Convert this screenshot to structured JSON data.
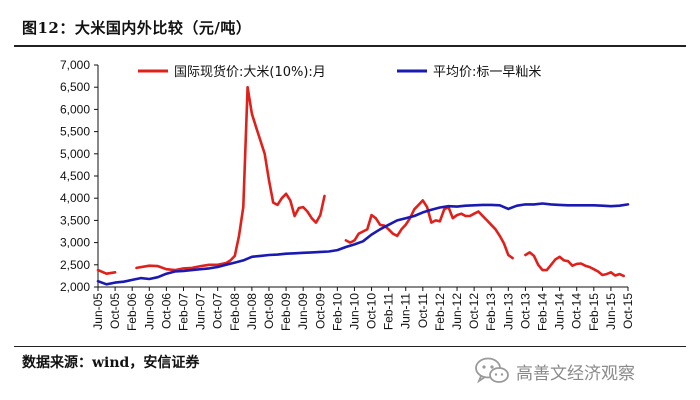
{
  "title": "图12：大米国内外比较（元/吨）",
  "source": "数据来源：wind，安信证券",
  "watermark": {
    "icon": "wechat-icon",
    "text": "高善文经济观察"
  },
  "chart_data": {
    "type": "line",
    "title": "图12：大米国内外比较（元/吨）",
    "xlabel": "",
    "ylabel": "",
    "ylim": [
      2000,
      7000
    ],
    "yticks": [
      2000,
      2500,
      3000,
      3500,
      4000,
      4500,
      5000,
      5500,
      6000,
      6500,
      7000
    ],
    "ytick_labels": [
      "2,000",
      "2,500",
      "3,000",
      "3,500",
      "4,000",
      "4,500",
      "5,000",
      "5,500",
      "6,000",
      "6,500",
      "7,000"
    ],
    "xlim": [
      "2005-06",
      "2015-10"
    ],
    "xtick_labels": [
      "Jun-05",
      "Oct-05",
      "Feb-06",
      "Jun-06",
      "Oct-06",
      "Feb-07",
      "Jun-07",
      "Oct-07",
      "Feb-08",
      "Jun-08",
      "Oct-08",
      "Feb-09",
      "Jun-09",
      "Oct-09",
      "Feb-10",
      "Jun-10",
      "Oct-10",
      "Feb-11",
      "Jun-11",
      "Oct-11",
      "Feb-12",
      "Jun-12",
      "Oct-12",
      "Feb-13",
      "Jun-13",
      "Oct-13",
      "Feb-14",
      "Jun-14",
      "Oct-14",
      "Feb-15",
      "Jun-15",
      "Oct-15"
    ],
    "grid": false,
    "legend_placement": "top",
    "series": [
      {
        "name": "国际现货价:大米(10%):月",
        "color": "#e0201b",
        "segments": [
          [
            [
              "2005-06",
              2380
            ],
            [
              "2005-08",
              2300
            ],
            [
              "2005-10",
              2330
            ]
          ],
          [
            [
              "2006-03",
              2430
            ],
            [
              "2006-06",
              2480
            ],
            [
              "2006-08",
              2470
            ],
            [
              "2006-10",
              2400
            ],
            [
              "2006-12",
              2380
            ],
            [
              "2007-02",
              2420
            ],
            [
              "2007-04",
              2430
            ],
            [
              "2007-06",
              2470
            ],
            [
              "2007-08",
              2500
            ],
            [
              "2007-10",
              2500
            ],
            [
              "2007-12",
              2540
            ],
            [
              "2008-01",
              2600
            ],
            [
              "2008-02",
              2700
            ],
            [
              "2008-03",
              3150
            ],
            [
              "2008-04",
              3800
            ],
            [
              "2008-05",
              6500
            ],
            [
              "2008-06",
              5900
            ],
            [
              "2008-07",
              5600
            ],
            [
              "2008-08",
              5300
            ],
            [
              "2008-09",
              5000
            ],
            [
              "2008-10",
              4400
            ],
            [
              "2008-11",
              3900
            ],
            [
              "2008-12",
              3850
            ],
            [
              "2009-01",
              4000
            ],
            [
              "2009-02",
              4100
            ],
            [
              "2009-03",
              3950
            ],
            [
              "2009-04",
              3600
            ],
            [
              "2009-05",
              3780
            ],
            [
              "2009-06",
              3800
            ],
            [
              "2009-07",
              3700
            ],
            [
              "2009-08",
              3550
            ],
            [
              "2009-09",
              3450
            ],
            [
              "2009-10",
              3620
            ],
            [
              "2009-11",
              4050
            ]
          ],
          [
            [
              "2010-04",
              3050
            ],
            [
              "2010-05",
              3000
            ],
            [
              "2010-06",
              3050
            ],
            [
              "2010-07",
              3200
            ],
            [
              "2010-08",
              3250
            ],
            [
              "2010-09",
              3300
            ],
            [
              "2010-10",
              3620
            ],
            [
              "2010-11",
              3550
            ],
            [
              "2010-12",
              3400
            ],
            [
              "2011-01",
              3380
            ],
            [
              "2011-02",
              3300
            ],
            [
              "2011-03",
              3200
            ],
            [
              "2011-04",
              3150
            ],
            [
              "2011-05",
              3300
            ],
            [
              "2011-06",
              3400
            ],
            [
              "2011-07",
              3550
            ],
            [
              "2011-08",
              3750
            ],
            [
              "2011-09",
              3850
            ],
            [
              "2011-10",
              3950
            ],
            [
              "2011-11",
              3800
            ],
            [
              "2011-12",
              3450
            ],
            [
              "2012-01",
              3500
            ],
            [
              "2012-02",
              3480
            ],
            [
              "2012-03",
              3750
            ],
            [
              "2012-04",
              3800
            ],
            [
              "2012-05",
              3550
            ],
            [
              "2012-06",
              3620
            ],
            [
              "2012-07",
              3650
            ],
            [
              "2012-08",
              3600
            ],
            [
              "2012-09",
              3600
            ],
            [
              "2012-10",
              3650
            ],
            [
              "2012-11",
              3700
            ],
            [
              "2012-12",
              3600
            ],
            [
              "2013-01",
              3500
            ],
            [
              "2013-02",
              3400
            ],
            [
              "2013-03",
              3300
            ],
            [
              "2013-04",
              3150
            ],
            [
              "2013-05",
              2980
            ],
            [
              "2013-06",
              2720
            ],
            [
              "2013-07",
              2650
            ]
          ],
          [
            [
              "2013-10",
              2720
            ],
            [
              "2013-11",
              2780
            ],
            [
              "2013-12",
              2700
            ],
            [
              "2014-01",
              2500
            ],
            [
              "2014-02",
              2380
            ],
            [
              "2014-03",
              2380
            ],
            [
              "2014-04",
              2500
            ],
            [
              "2014-05",
              2620
            ],
            [
              "2014-06",
              2680
            ],
            [
              "2014-07",
              2600
            ],
            [
              "2014-08",
              2580
            ],
            [
              "2014-09",
              2480
            ],
            [
              "2014-10",
              2520
            ],
            [
              "2014-11",
              2530
            ],
            [
              "2014-12",
              2480
            ],
            [
              "2015-01",
              2450
            ],
            [
              "2015-02",
              2400
            ],
            [
              "2015-03",
              2350
            ],
            [
              "2015-04",
              2270
            ],
            [
              "2015-05",
              2290
            ],
            [
              "2015-06",
              2330
            ],
            [
              "2015-07",
              2260
            ],
            [
              "2015-08",
              2290
            ],
            [
              "2015-09",
              2250
            ]
          ]
        ]
      },
      {
        "name": "平均价:标一早籼米",
        "color": "#1a1ab2",
        "segments": [
          [
            [
              "2005-06",
              2130
            ],
            [
              "2005-08",
              2060
            ],
            [
              "2005-10",
              2100
            ],
            [
              "2005-12",
              2120
            ],
            [
              "2006-02",
              2160
            ],
            [
              "2006-04",
              2200
            ],
            [
              "2006-06",
              2180
            ],
            [
              "2006-08",
              2220
            ],
            [
              "2006-10",
              2300
            ],
            [
              "2006-12",
              2350
            ],
            [
              "2007-02",
              2360
            ],
            [
              "2007-04",
              2380
            ],
            [
              "2007-06",
              2400
            ],
            [
              "2007-08",
              2420
            ],
            [
              "2007-10",
              2450
            ],
            [
              "2007-12",
              2500
            ],
            [
              "2008-02",
              2550
            ],
            [
              "2008-04",
              2600
            ],
            [
              "2008-06",
              2680
            ],
            [
              "2008-08",
              2700
            ],
            [
              "2008-10",
              2720
            ],
            [
              "2008-12",
              2730
            ],
            [
              "2009-02",
              2750
            ],
            [
              "2009-04",
              2760
            ],
            [
              "2009-06",
              2770
            ],
            [
              "2009-08",
              2780
            ],
            [
              "2009-10",
              2790
            ],
            [
              "2009-12",
              2800
            ],
            [
              "2010-02",
              2830
            ],
            [
              "2010-04",
              2900
            ],
            [
              "2010-06",
              2960
            ],
            [
              "2010-08",
              3030
            ],
            [
              "2010-10",
              3180
            ],
            [
              "2010-12",
              3300
            ],
            [
              "2011-02",
              3400
            ],
            [
              "2011-04",
              3500
            ],
            [
              "2011-06",
              3550
            ],
            [
              "2011-08",
              3600
            ],
            [
              "2011-10",
              3680
            ],
            [
              "2011-12",
              3740
            ],
            [
              "2012-02",
              3790
            ],
            [
              "2012-04",
              3820
            ],
            [
              "2012-06",
              3810
            ],
            [
              "2012-08",
              3830
            ],
            [
              "2012-10",
              3840
            ],
            [
              "2012-12",
              3850
            ],
            [
              "2013-02",
              3850
            ],
            [
              "2013-04",
              3840
            ],
            [
              "2013-06",
              3760
            ],
            [
              "2013-08",
              3830
            ],
            [
              "2013-10",
              3860
            ],
            [
              "2013-12",
              3860
            ],
            [
              "2014-02",
              3880
            ],
            [
              "2014-04",
              3860
            ],
            [
              "2014-06",
              3850
            ],
            [
              "2014-08",
              3840
            ],
            [
              "2014-10",
              3840
            ],
            [
              "2014-12",
              3840
            ],
            [
              "2015-02",
              3840
            ],
            [
              "2015-04",
              3830
            ],
            [
              "2015-06",
              3820
            ],
            [
              "2015-08",
              3830
            ],
            [
              "2015-10",
              3860
            ]
          ]
        ]
      }
    ]
  }
}
